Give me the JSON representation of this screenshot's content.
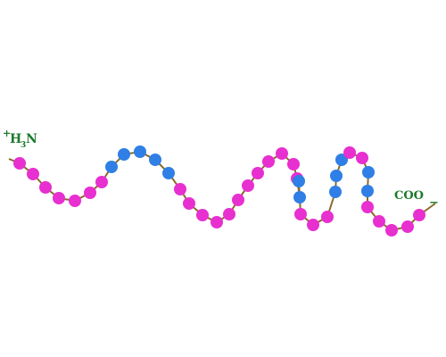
{
  "diagram": {
    "n_terminus": {
      "charge": "+",
      "text_h": "H",
      "text_sub": "3",
      "text_n": "N"
    },
    "c_terminus": {
      "text": "COO",
      "charge": "−"
    },
    "residues": [
      "pink",
      "pink",
      "pink",
      "pink",
      "pink",
      "pink",
      "pink",
      "blue",
      "blue",
      "blue",
      "blue",
      "blue",
      "pink",
      "pink",
      "pink",
      "pink",
      "pink",
      "pink",
      "pink",
      "pink",
      "pink",
      "pink",
      "pink",
      "pink",
      "blue",
      "blue",
      "pink",
      "pink",
      "pink",
      "blue",
      "blue",
      "blue",
      "pink",
      "pink",
      "blue",
      "blue",
      "pink",
      "pink",
      "pink",
      "pink",
      "pink"
    ],
    "colors": {
      "pink": "#e82fd0",
      "blue": "#2f7fe6",
      "backbone": "#8a6a2a",
      "label": "#1b7a2b"
    }
  }
}
